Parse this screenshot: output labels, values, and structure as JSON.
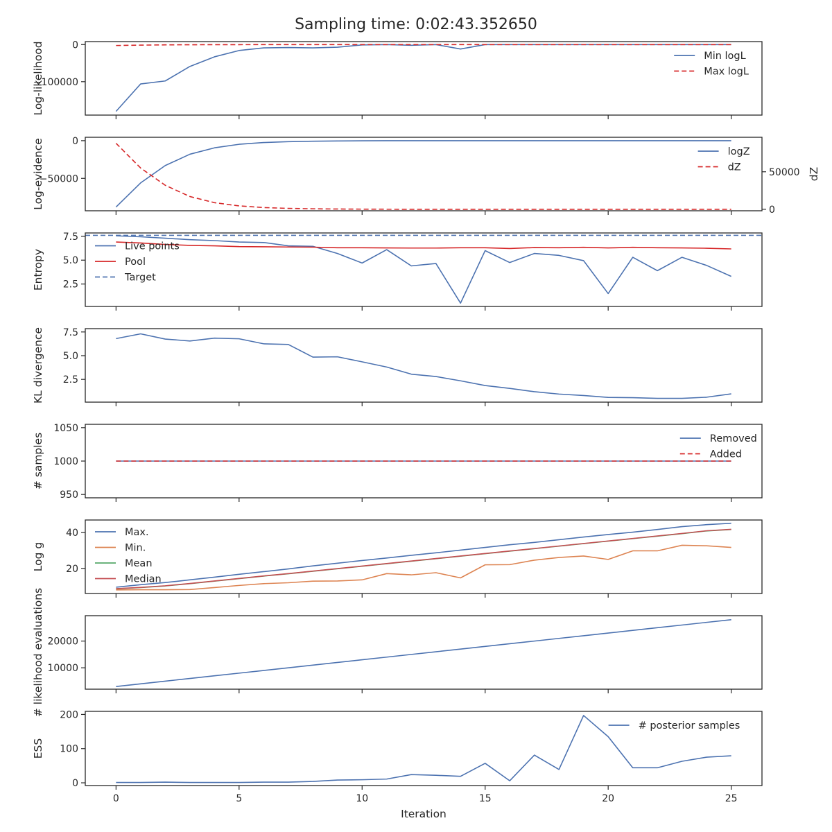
{
  "title": "Sampling time: 0:02:43.352650",
  "x_axis": {
    "label": "Iteration",
    "lim": [
      -1.25,
      26.25
    ],
    "ticks": [
      0,
      5,
      10,
      15,
      20,
      25
    ],
    "tick_labels": [
      "0",
      "5",
      "10",
      "15",
      "20",
      "25"
    ]
  },
  "colors": {
    "blue": "#4c72b0",
    "red": "#d62728",
    "orange": "#dd8452",
    "green": "#55a868",
    "brownred": "#c44e52",
    "axes": "#262626"
  },
  "chart_data": [
    {
      "type": "line",
      "ylabel": "Log-likelihood",
      "ylim": [
        -190000,
        8000
      ],
      "yticks": [
        0,
        -100000
      ],
      "ytick_labels": [
        "0",
        "−100000"
      ],
      "legend_position": "upper right",
      "x": [
        0,
        1,
        2,
        3,
        4,
        5,
        6,
        7,
        8,
        9,
        10,
        11,
        12,
        13,
        14,
        15,
        16,
        17,
        18,
        19,
        20,
        21,
        22,
        23,
        24,
        25
      ],
      "series": [
        {
          "name": "Min logL",
          "color": "#4c72b0",
          "dash": "solid",
          "values": [
            -180000,
            -106000,
            -98000,
            -59000,
            -33000,
            -16000,
            -9000,
            -8000,
            -9000,
            -7000,
            -1000,
            0,
            -2000,
            0,
            -12000,
            0,
            0,
            0,
            0,
            0,
            0,
            0,
            0,
            0,
            0,
            0
          ]
        },
        {
          "name": "Max logL",
          "color": "#d62728",
          "dash": "dashed",
          "values": [
            -2500,
            -1500,
            -800,
            -500,
            -300,
            -200,
            -100,
            -50,
            -30,
            -20,
            -10,
            -5,
            -3,
            -2,
            -1,
            0,
            0,
            0,
            0,
            0,
            0,
            0,
            0,
            0,
            0,
            0
          ]
        }
      ]
    },
    {
      "type": "line",
      "ylabel": "Log-evidence",
      "ylabel_right": "dZ",
      "ylim": [
        -93000,
        4500
      ],
      "yticks": [
        0,
        -50000
      ],
      "ytick_labels": [
        "0",
        "−50000"
      ],
      "ylim_right": [
        -2000,
        96000
      ],
      "yticks_right": [
        0,
        50000
      ],
      "ytick_labels_right": [
        "0",
        "50000"
      ],
      "legend_position": "upper right",
      "x": [
        0,
        1,
        2,
        3,
        4,
        5,
        6,
        7,
        8,
        9,
        10,
        11,
        12,
        13,
        14,
        15,
        16,
        17,
        18,
        19,
        20,
        21,
        22,
        23,
        24,
        25
      ],
      "series": [
        {
          "name": "logZ",
          "color": "#4c72b0",
          "dash": "solid",
          "axis": "left",
          "values": [
            -88000,
            -56000,
            -33000,
            -18000,
            -9500,
            -4800,
            -2500,
            -1300,
            -700,
            -350,
            -150,
            -60,
            -25,
            -10,
            -4,
            -2,
            -1,
            0,
            0,
            0,
            0,
            0,
            0,
            0,
            0,
            0
          ]
        },
        {
          "name": "dZ",
          "color": "#d62728",
          "dash": "dashed",
          "axis": "right",
          "values": [
            88000,
            55000,
            32000,
            17000,
            8800,
            4500,
            2300,
            1200,
            650,
            350,
            180,
            90,
            40,
            20,
            10,
            5,
            2,
            1,
            0,
            0,
            0,
            0,
            0,
            0,
            0,
            0
          ]
        }
      ]
    },
    {
      "type": "line",
      "ylabel": "Entropy",
      "ylim": [
        0.15,
        7.85
      ],
      "yticks": [
        2.5,
        5.0,
        7.5
      ],
      "ytick_labels": [
        "2.5",
        "5.0",
        "7.5"
      ],
      "legend_position": "center left",
      "x": [
        0,
        1,
        2,
        3,
        4,
        5,
        6,
        7,
        8,
        9,
        10,
        11,
        12,
        13,
        14,
        15,
        16,
        17,
        18,
        19,
        20,
        21,
        22,
        23,
        24,
        25
      ],
      "series": [
        {
          "name": "Live points",
          "color": "#4c72b0",
          "dash": "solid",
          "values": [
            7.55,
            7.45,
            7.3,
            7.15,
            7.05,
            6.9,
            6.85,
            6.5,
            6.45,
            5.7,
            4.7,
            6.1,
            4.4,
            4.65,
            0.5,
            6.0,
            4.75,
            5.7,
            5.5,
            4.95,
            1.5,
            5.3,
            3.9,
            5.3,
            4.45,
            3.3
          ]
        },
        {
          "name": "Pool",
          "color": "#d62728",
          "dash": "solid",
          "values": [
            6.9,
            6.8,
            6.65,
            6.55,
            6.5,
            6.42,
            6.4,
            6.38,
            6.36,
            6.3,
            6.3,
            6.28,
            6.27,
            6.27,
            6.3,
            6.3,
            6.22,
            6.32,
            6.3,
            6.35,
            6.28,
            6.35,
            6.3,
            6.28,
            6.25,
            6.18
          ]
        },
        {
          "name": "Target",
          "color": "#4c72b0",
          "dash": "dashed",
          "constant": 7.6
        }
      ]
    },
    {
      "type": "line",
      "ylabel": "KL divergence",
      "ylim": [
        0.1,
        7.85
      ],
      "yticks": [
        2.5,
        5.0,
        7.5
      ],
      "ytick_labels": [
        "2.5",
        "5.0",
        "7.5"
      ],
      "x": [
        0,
        1,
        2,
        3,
        4,
        5,
        6,
        7,
        8,
        9,
        10,
        11,
        12,
        13,
        14,
        15,
        16,
        17,
        18,
        19,
        20,
        21,
        22,
        23,
        24,
        25
      ],
      "series": [
        {
          "color": "#4c72b0",
          "dash": "solid",
          "values": [
            6.8,
            7.3,
            6.75,
            6.55,
            6.85,
            6.78,
            6.25,
            6.18,
            4.85,
            4.88,
            4.35,
            3.8,
            3.05,
            2.8,
            2.35,
            1.85,
            1.55,
            1.2,
            0.95,
            0.8,
            0.6,
            0.57,
            0.5,
            0.5,
            0.62,
            0.97
          ]
        }
      ]
    },
    {
      "type": "line",
      "ylabel": "# samples",
      "ylim": [
        945,
        1055
      ],
      "yticks": [
        950,
        1000,
        1050
      ],
      "ytick_labels": [
        "950",
        "1000",
        "1050"
      ],
      "legend_position": "upper right",
      "x": [
        0,
        1,
        2,
        3,
        4,
        5,
        6,
        7,
        8,
        9,
        10,
        11,
        12,
        13,
        14,
        15,
        16,
        17,
        18,
        19,
        20,
        21,
        22,
        23,
        24,
        25
      ],
      "series": [
        {
          "name": "Removed",
          "color": "#4c72b0",
          "dash": "solid",
          "values": [
            1000,
            1000,
            1000,
            1000,
            1000,
            1000,
            1000,
            1000,
            1000,
            1000,
            1000,
            1000,
            1000,
            1000,
            1000,
            1000,
            1000,
            1000,
            1000,
            1000,
            1000,
            1000,
            1000,
            1000,
            1000,
            1000
          ]
        },
        {
          "name": "Added",
          "color": "#d62728",
          "dash": "dashed",
          "values": [
            1000,
            1000,
            1000,
            1000,
            1000,
            1000,
            1000,
            1000,
            1000,
            1000,
            1000,
            1000,
            1000,
            1000,
            1000,
            1000,
            1000,
            1000,
            1000,
            1000,
            1000,
            1000,
            1000,
            1000,
            1000,
            1000
          ]
        }
      ]
    },
    {
      "type": "line",
      "ylabel": "Log g",
      "ylim": [
        6,
        47
      ],
      "yticks": [
        20,
        40
      ],
      "ytick_labels": [
        "20",
        "40"
      ],
      "legend_position": "upper left",
      "x": [
        0,
        1,
        2,
        3,
        4,
        5,
        6,
        7,
        8,
        9,
        10,
        11,
        12,
        13,
        14,
        15,
        16,
        17,
        18,
        19,
        20,
        21,
        22,
        23,
        24,
        25
      ],
      "series": [
        {
          "name": "Max.",
          "color": "#4c72b0",
          "dash": "solid",
          "values": [
            9.5,
            10.9,
            12.1,
            13.6,
            15.1,
            16.7,
            18.2,
            19.7,
            21.4,
            22.9,
            24.4,
            25.8,
            27.3,
            28.7,
            30.2,
            31.7,
            33.2,
            34.5,
            36.0,
            37.5,
            38.9,
            40.2,
            41.7,
            43.3,
            44.4,
            45.2
          ]
        },
        {
          "name": "Min.",
          "color": "#dd8452",
          "dash": "solid",
          "values": [
            8.0,
            8.1,
            8.1,
            8.2,
            9.3,
            10.5,
            11.5,
            12.0,
            12.9,
            13.0,
            13.6,
            17.1,
            16.4,
            17.6,
            14.7,
            22.0,
            22.1,
            24.6,
            26.1,
            26.9,
            25.0,
            29.8,
            29.8,
            32.9,
            32.6,
            31.7
          ]
        },
        {
          "name": "Mean",
          "color": "#55a868",
          "dash": "solid",
          "values": [
            8.6,
            9.3,
            10.2,
            11.5,
            12.9,
            14.3,
            15.7,
            17.0,
            18.4,
            19.8,
            21.2,
            22.6,
            24.0,
            25.4,
            26.8,
            28.2,
            29.6,
            31.0,
            32.4,
            33.8,
            35.2,
            36.6,
            38.0,
            39.4,
            40.9,
            41.7
          ]
        },
        {
          "name": "Median",
          "color": "#c44e52",
          "dash": "solid",
          "values": [
            8.7,
            9.4,
            10.3,
            11.6,
            13.0,
            14.4,
            15.8,
            17.1,
            18.5,
            19.9,
            21.3,
            22.7,
            24.1,
            25.5,
            26.9,
            28.3,
            29.7,
            31.1,
            32.5,
            33.9,
            35.3,
            36.7,
            38.1,
            39.5,
            41.0,
            41.8
          ]
        }
      ]
    },
    {
      "type": "line",
      "ylabel": "# likelihood evaluations",
      "ylim": [
        2000,
        29500
      ],
      "yticks": [
        10000,
        20000
      ],
      "ytick_labels": [
        "10000",
        "20000"
      ],
      "x": [
        0,
        1,
        2,
        3,
        4,
        5,
        6,
        7,
        8,
        9,
        10,
        11,
        12,
        13,
        14,
        15,
        16,
        17,
        18,
        19,
        20,
        21,
        22,
        23,
        24,
        25
      ],
      "series": [
        {
          "color": "#4c72b0",
          "dash": "solid",
          "values": [
            3000,
            4000,
            5000,
            6000,
            7000,
            8000,
            9000,
            10000,
            11000,
            12000,
            13000,
            14000,
            15000,
            16000,
            17000,
            18000,
            19000,
            20000,
            21000,
            22000,
            23000,
            24000,
            25000,
            26000,
            27000,
            28000
          ]
        }
      ]
    },
    {
      "type": "line",
      "ylabel": "ESS",
      "ylim": [
        -8,
        209
      ],
      "yticks": [
        0,
        100,
        200
      ],
      "ytick_labels": [
        "0",
        "100",
        "200"
      ],
      "legend_position": "upper right",
      "x": [
        0,
        1,
        2,
        3,
        4,
        5,
        6,
        7,
        8,
        9,
        10,
        11,
        12,
        13,
        14,
        15,
        16,
        17,
        18,
        19,
        20,
        21,
        22,
        23,
        24,
        25
      ],
      "series": [
        {
          "name": "# posterior samples",
          "color": "#4c72b0",
          "dash": "solid",
          "values": [
            1,
            1,
            2,
            1,
            1,
            1,
            2,
            2,
            4,
            8,
            9,
            11,
            24,
            22,
            19,
            57,
            6,
            81,
            39,
            197,
            135,
            44,
            44,
            63,
            75,
            79
          ]
        }
      ]
    }
  ]
}
